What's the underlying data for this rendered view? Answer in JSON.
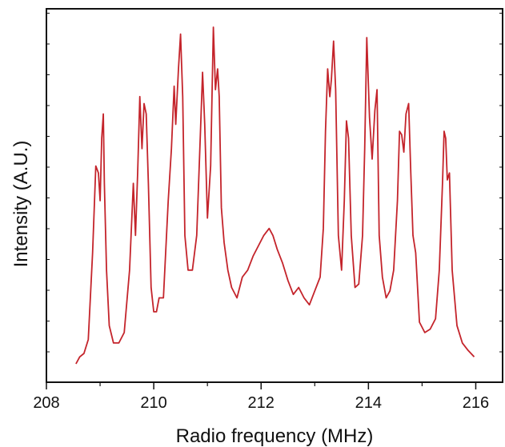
{
  "chart_data": {
    "type": "line",
    "title": "",
    "xlabel": "Radio frequency (MHz)",
    "ylabel": "Intensity (A.U.)",
    "xlim": [
      208,
      216.5
    ],
    "ylim": [
      0,
      1
    ],
    "x_ticks": [
      "208",
      "210",
      "212",
      "214",
      "216"
    ],
    "x_tick_values": [
      208,
      210,
      212,
      214,
      216
    ],
    "y_tick_labels_shown": false,
    "grid": false,
    "legend": "none",
    "line_color": "#c4242b",
    "series": [
      {
        "x": [
          208.55,
          208.62,
          208.7,
          208.78,
          208.86,
          208.92,
          208.97,
          209.0,
          209.03,
          209.06,
          209.08,
          209.12,
          209.17,
          209.25,
          209.35,
          209.45,
          209.55,
          209.62,
          209.66,
          209.7,
          209.74,
          209.78,
          209.82,
          209.86,
          209.9,
          209.95,
          210.0,
          210.05,
          210.1,
          210.18,
          210.27,
          210.33,
          210.38,
          210.41,
          210.46,
          210.5,
          210.54,
          210.58,
          210.64,
          210.72,
          210.8,
          210.87,
          210.91,
          210.95,
          211.0,
          211.06,
          211.11,
          211.15,
          211.19,
          211.22,
          211.26,
          211.31,
          211.38,
          211.45,
          211.55,
          211.65,
          211.75,
          211.85,
          211.95,
          212.05,
          212.15,
          212.22,
          212.3,
          212.4,
          212.5,
          212.6,
          212.7,
          212.8,
          212.9,
          213.0,
          213.1,
          213.16,
          213.2,
          213.24,
          213.28,
          213.31,
          213.35,
          213.39,
          213.44,
          213.5,
          213.55,
          213.59,
          213.63,
          213.68,
          213.75,
          213.82,
          213.89,
          213.93,
          213.97,
          214.02,
          214.07,
          214.12,
          214.16,
          214.2,
          214.26,
          214.33,
          214.4,
          214.47,
          214.54,
          214.58,
          214.62,
          214.66,
          214.7,
          214.75,
          214.79,
          214.83,
          214.88,
          214.95,
          215.05,
          215.15,
          215.25,
          215.32,
          215.38,
          215.41,
          215.44,
          215.47,
          215.51,
          215.56,
          215.65,
          215.75,
          215.85,
          215.97
        ],
        "y": [
          0.03,
          0.05,
          0.06,
          0.1,
          0.35,
          0.6,
          0.58,
          0.5,
          0.68,
          0.75,
          0.55,
          0.3,
          0.14,
          0.09,
          0.09,
          0.12,
          0.3,
          0.55,
          0.4,
          0.58,
          0.8,
          0.65,
          0.78,
          0.75,
          0.55,
          0.25,
          0.18,
          0.18,
          0.22,
          0.22,
          0.5,
          0.65,
          0.83,
          0.72,
          0.88,
          0.98,
          0.8,
          0.4,
          0.3,
          0.3,
          0.4,
          0.7,
          0.87,
          0.72,
          0.45,
          0.6,
          1.0,
          0.82,
          0.88,
          0.8,
          0.48,
          0.38,
          0.3,
          0.25,
          0.22,
          0.28,
          0.3,
          0.34,
          0.37,
          0.4,
          0.42,
          0.4,
          0.36,
          0.32,
          0.27,
          0.23,
          0.25,
          0.22,
          0.2,
          0.24,
          0.28,
          0.42,
          0.7,
          0.88,
          0.8,
          0.85,
          0.96,
          0.82,
          0.4,
          0.3,
          0.5,
          0.73,
          0.68,
          0.4,
          0.25,
          0.26,
          0.4,
          0.65,
          0.97,
          0.74,
          0.62,
          0.76,
          0.82,
          0.4,
          0.28,
          0.22,
          0.24,
          0.3,
          0.5,
          0.7,
          0.69,
          0.64,
          0.75,
          0.78,
          0.58,
          0.4,
          0.35,
          0.15,
          0.12,
          0.13,
          0.16,
          0.3,
          0.55,
          0.7,
          0.68,
          0.56,
          0.58,
          0.3,
          0.14,
          0.09,
          0.07,
          0.05
        ]
      }
    ]
  }
}
